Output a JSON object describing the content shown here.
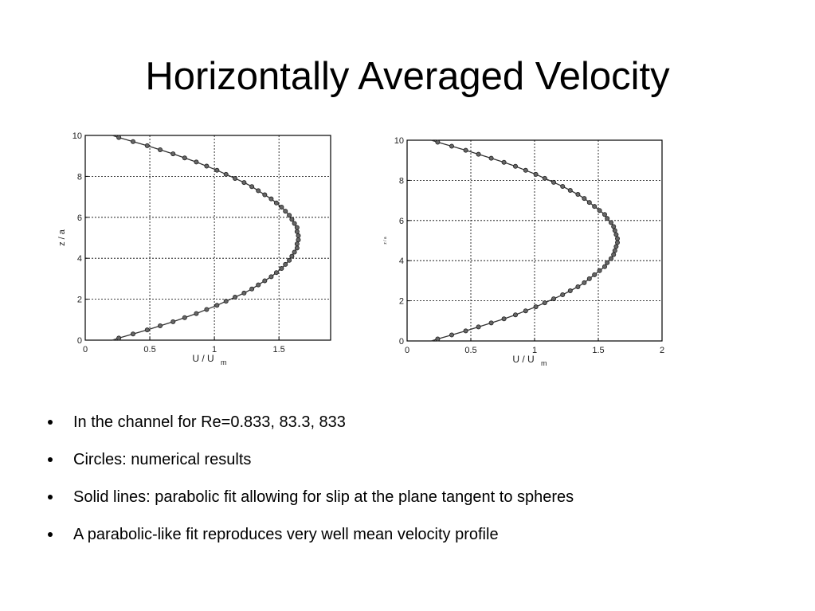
{
  "slide": {
    "title": "Horizontally Averaged Velocity",
    "bullets": [
      "In the channel for Re=0.833, 83.3, 833",
      "Circles: numerical results",
      "Solid lines: parabolic fit allowing for slip at the plane tangent to spheres",
      "A parabolic-like fit reproduces very well mean velocity profile"
    ]
  },
  "chart_data": [
    {
      "type": "line",
      "xlabel": "U / U",
      "xlabel_sub": "m",
      "ylabel": "z / a",
      "xlim": [
        0,
        1.9
      ],
      "ylim": [
        0,
        10
      ],
      "xticks": [
        "0",
        "0.5",
        "1",
        "1.5"
      ],
      "xtick_values": [
        0,
        0.5,
        1,
        1.5
      ],
      "yticks": [
        "0",
        "2",
        "4",
        "6",
        "8",
        "10"
      ],
      "ytick_values": [
        0,
        2,
        4,
        6,
        8,
        10
      ],
      "grid": true,
      "series": [
        {
          "marker": "circle",
          "line": "solid",
          "color": "#333333",
          "z": [
            0.1,
            0.3,
            0.5,
            0.7,
            0.9,
            1.1,
            1.3,
            1.5,
            1.7,
            1.9,
            2.1,
            2.3,
            2.5,
            2.7,
            2.9,
            3.1,
            3.3,
            3.5,
            3.7,
            3.9,
            4.1,
            4.3,
            4.5,
            4.7,
            4.9,
            5.1,
            5.3,
            5.5,
            5.7,
            5.9,
            6.1,
            6.3,
            6.5,
            6.7,
            6.9,
            7.1,
            7.3,
            7.5,
            7.7,
            7.9,
            8.1,
            8.3,
            8.5,
            8.7,
            8.9,
            9.1,
            9.3,
            9.5,
            9.7,
            9.9
          ],
          "u": [
            0.26,
            0.37,
            0.48,
            0.58,
            0.68,
            0.77,
            0.86,
            0.94,
            1.02,
            1.09,
            1.16,
            1.23,
            1.29,
            1.34,
            1.39,
            1.44,
            1.48,
            1.52,
            1.55,
            1.58,
            1.6,
            1.62,
            1.64,
            1.64,
            1.65,
            1.65,
            1.64,
            1.64,
            1.62,
            1.6,
            1.58,
            1.55,
            1.52,
            1.48,
            1.44,
            1.39,
            1.34,
            1.29,
            1.23,
            1.16,
            1.09,
            1.02,
            0.94,
            0.86,
            0.77,
            0.68,
            0.58,
            0.48,
            0.37,
            0.26
          ]
        }
      ]
    },
    {
      "type": "line",
      "xlabel": "U / U",
      "xlabel_sub": "m",
      "ylabel": "z / a",
      "xlim": [
        0,
        2
      ],
      "ylim": [
        0,
        10
      ],
      "xticks": [
        "0",
        "0.5",
        "1",
        "1.5",
        "2"
      ],
      "xtick_values": [
        0,
        0.5,
        1,
        1.5,
        2
      ],
      "yticks": [
        "0",
        "2",
        "4",
        "6",
        "8",
        "10"
      ],
      "ytick_values": [
        0,
        2,
        4,
        6,
        8,
        10
      ],
      "grid": true,
      "series": [
        {
          "marker": "circle",
          "line": "solid",
          "color": "#333333",
          "z": [
            0.1,
            0.3,
            0.5,
            0.7,
            0.9,
            1.1,
            1.3,
            1.5,
            1.7,
            1.9,
            2.1,
            2.3,
            2.5,
            2.7,
            2.9,
            3.1,
            3.3,
            3.5,
            3.7,
            3.9,
            4.1,
            4.3,
            4.5,
            4.7,
            4.9,
            5.1,
            5.3,
            5.5,
            5.7,
            5.9,
            6.1,
            6.3,
            6.5,
            6.7,
            6.9,
            7.1,
            7.3,
            7.5,
            7.7,
            7.9,
            8.1,
            8.3,
            8.5,
            8.7,
            8.9,
            9.1,
            9.3,
            9.5,
            9.7,
            9.9
          ],
          "u": [
            0.24,
            0.35,
            0.46,
            0.56,
            0.66,
            0.76,
            0.85,
            0.93,
            1.01,
            1.08,
            1.15,
            1.22,
            1.28,
            1.34,
            1.39,
            1.43,
            1.47,
            1.51,
            1.55,
            1.57,
            1.6,
            1.62,
            1.63,
            1.64,
            1.65,
            1.65,
            1.64,
            1.63,
            1.62,
            1.6,
            1.57,
            1.55,
            1.51,
            1.47,
            1.43,
            1.39,
            1.34,
            1.28,
            1.22,
            1.15,
            1.08,
            1.01,
            0.93,
            0.85,
            0.76,
            0.66,
            0.56,
            0.46,
            0.35,
            0.24
          ]
        }
      ]
    }
  ]
}
